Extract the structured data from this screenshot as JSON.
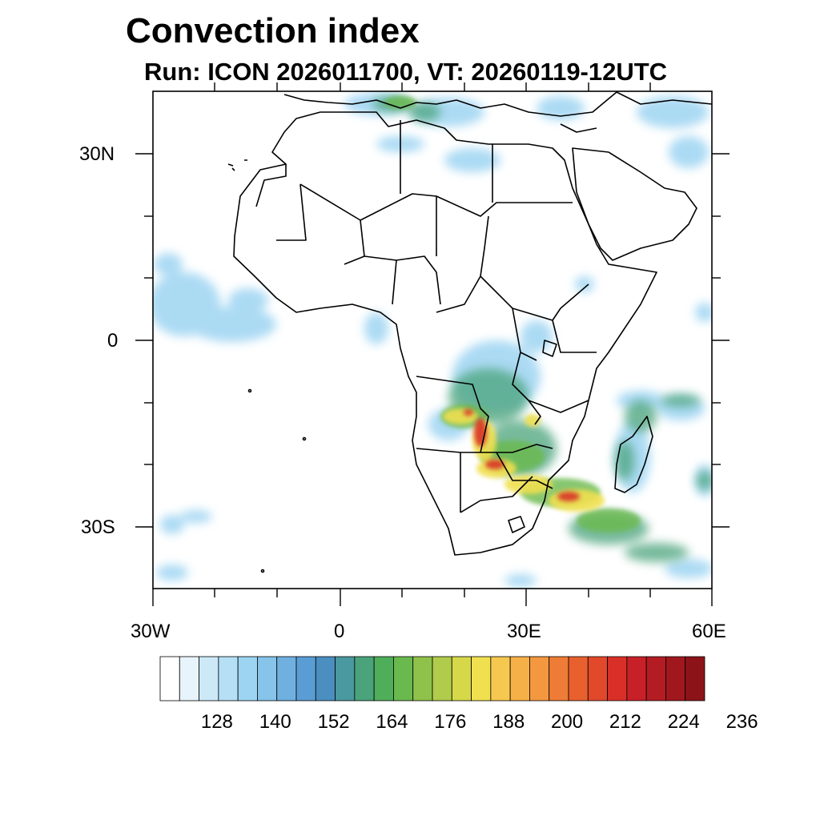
{
  "title": "Convection index",
  "subtitle": "Run: ICON 2026011700,  VT: 20260119-12UTC",
  "axes": {
    "lat_labels": [
      "30N",
      "0",
      "30S"
    ],
    "lon_labels": [
      "30W",
      "0",
      "30E",
      "60E"
    ],
    "lon_range": [
      -30,
      60
    ],
    "lat_range": [
      -40,
      40
    ]
  },
  "colorbar": {
    "tick_labels": [
      "128",
      "140",
      "152",
      "164",
      "176",
      "188",
      "200",
      "212",
      "224",
      "236"
    ],
    "colors": [
      "#ffffff",
      "#e8f4fb",
      "#cde9f7",
      "#b5dff5",
      "#9dd4f2",
      "#86c4ea",
      "#6fb0e0",
      "#5a9dd4",
      "#4a8fc0",
      "#4a98a0",
      "#4aa37a",
      "#4fae5a",
      "#6ab94e",
      "#8fc24a",
      "#b0cc4a",
      "#d6d84a",
      "#f0e050",
      "#f6c850",
      "#f6b048",
      "#f49840",
      "#ee7c36",
      "#e8602e",
      "#e2482a",
      "#d83028",
      "#c82028",
      "#b41c24",
      "#a0181e",
      "#8c1418"
    ]
  },
  "colors": {
    "land_border": "#000000",
    "low": "#86c4ea",
    "mid": "#4fae5a",
    "high": "#f0e050",
    "peak": "#d83028"
  }
}
